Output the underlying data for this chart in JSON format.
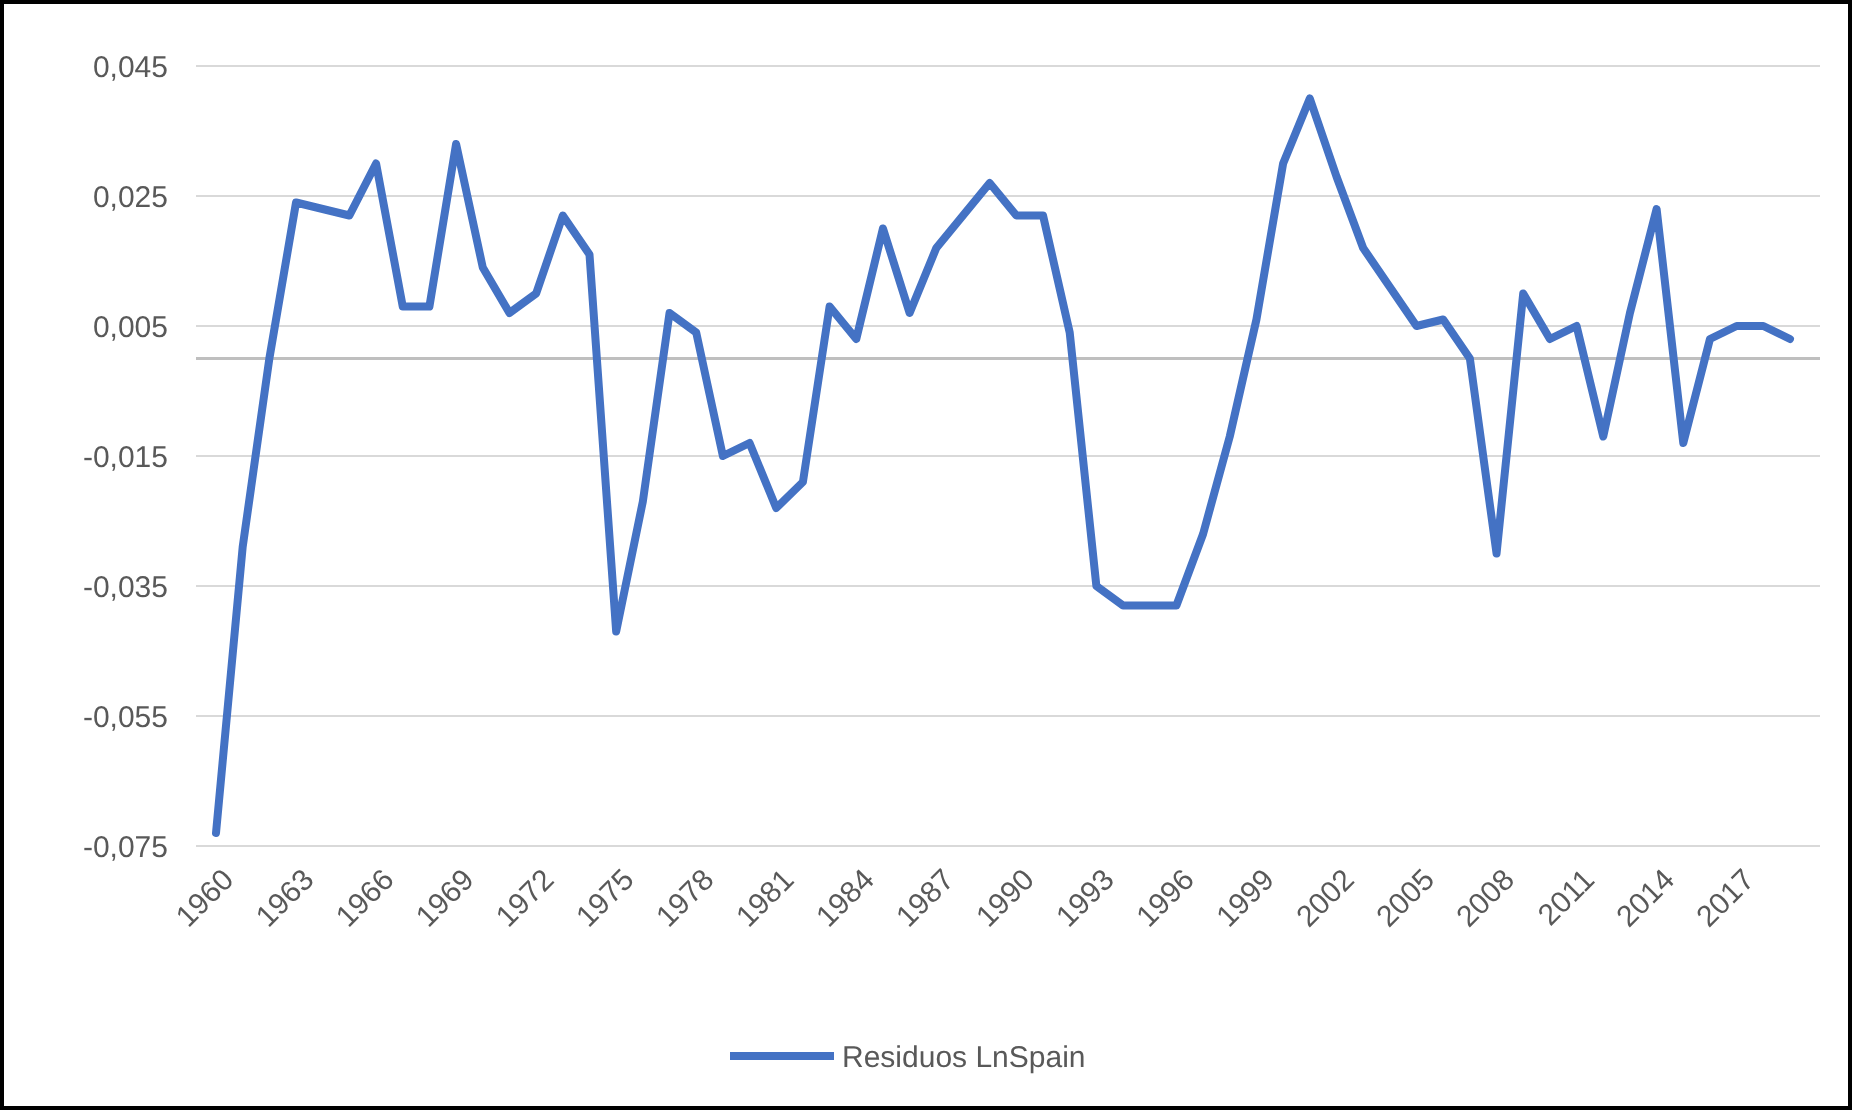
{
  "chart_data": {
    "type": "line",
    "categories": [
      "1960",
      null,
      null,
      "1963",
      null,
      null,
      "1966",
      null,
      null,
      "1969",
      null,
      null,
      "1972",
      null,
      null,
      "1975",
      null,
      null,
      "1978",
      null,
      null,
      "1981",
      null,
      null,
      "1984",
      null,
      null,
      "1987",
      null,
      null,
      "1990",
      null,
      null,
      "1993",
      null,
      null,
      "1996",
      null,
      null,
      "1999",
      null,
      null,
      "2002",
      null,
      null,
      "2005",
      null,
      null,
      "2008",
      null,
      null,
      "2011",
      null,
      null,
      "2014",
      null,
      null,
      "2017",
      null,
      null
    ],
    "series": [
      {
        "name": "Residuos LnSpain",
        "color": "#4472c4",
        "values": [
          -0.073,
          -0.029,
          0.0,
          0.024,
          0.023,
          0.022,
          0.03,
          0.008,
          0.008,
          0.033,
          0.014,
          0.007,
          0.01,
          0.022,
          0.016,
          -0.042,
          -0.022,
          0.007,
          0.004,
          -0.015,
          -0.013,
          -0.023,
          -0.019,
          0.008,
          0.003,
          0.02,
          0.007,
          0.017,
          0.022,
          0.027,
          0.022,
          0.022,
          0.004,
          -0.035,
          -0.038,
          -0.038,
          -0.038,
          -0.027,
          -0.012,
          0.006,
          0.03,
          0.04,
          0.028,
          0.017,
          0.011,
          0.005,
          0.006,
          0.0,
          -0.03,
          0.01,
          0.003,
          0.005,
          -0.012,
          0.007,
          0.023,
          -0.013,
          0.003,
          0.005,
          0.005,
          0.003
        ]
      }
    ],
    "ylim": [
      -0.075,
      0.045
    ],
    "yticks": [
      {
        "value": -0.075,
        "label": "-0,075"
      },
      {
        "value": -0.055,
        "label": "-0,055"
      },
      {
        "value": -0.035,
        "label": "-0,035"
      },
      {
        "value": -0.015,
        "label": "-0,015"
      },
      {
        "value": 0.005,
        "label": "0,005"
      },
      {
        "value": 0.025,
        "label": "0,025"
      },
      {
        "value": 0.045,
        "label": "0,045"
      }
    ],
    "ref_lines": [
      {
        "axis": "y",
        "value": 0
      }
    ],
    "grid": "y",
    "legend": "bottom",
    "marker": "none",
    "line_style": "solid"
  }
}
